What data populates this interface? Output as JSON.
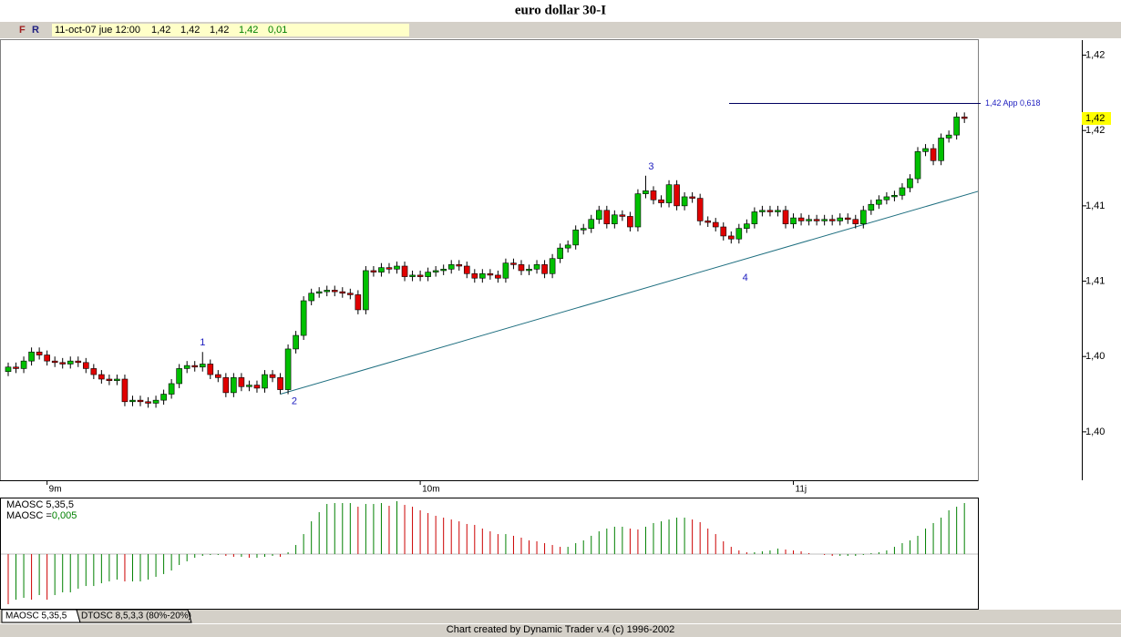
{
  "window": {
    "title": "euro dollar 30-I",
    "header": {
      "buttons": [
        "F",
        "R"
      ],
      "date": "11-oct-07 jue 12:00",
      "values": [
        "1,42",
        "1,42",
        "1,42",
        "1,42",
        "0,01"
      ]
    },
    "tabs": [
      "MAOSC 5,35,5",
      "DTOSC 8,5,3,3 (80%-20%)"
    ],
    "footer": "Chart created by Dynamic Trader v.4  (c)  1996-2002"
  },
  "chart_data": {
    "type": "candlestick",
    "ylim": [
      1.396,
      1.426
    ],
    "yticks": [
      {
        "value": 1.425,
        "label": "1,42"
      },
      {
        "value": 1.42,
        "label": "1,42"
      },
      {
        "value": 1.415,
        "label": "1,41"
      },
      {
        "value": 1.41,
        "label": "1,41"
      },
      {
        "value": 1.405,
        "label": "1,40"
      },
      {
        "value": 1.4,
        "label": "1,40"
      }
    ],
    "categories": [
      null,
      null,
      null,
      null,
      null,
      "9m",
      null,
      null,
      null,
      null,
      null,
      null,
      null,
      null,
      null,
      null,
      null,
      null,
      null,
      null,
      null,
      null,
      null,
      null,
      null,
      null,
      null,
      null,
      null,
      null,
      null,
      null,
      null,
      null,
      null,
      null,
      null,
      null,
      null,
      null,
      null,
      null,
      null,
      null,
      null,
      null,
      null,
      null,
      null,
      null,
      null,
      null,
      null,
      "10m",
      null,
      null,
      null,
      null,
      null,
      null,
      null,
      null,
      null,
      null,
      null,
      null,
      null,
      null,
      null,
      null,
      null,
      null,
      null,
      null,
      null,
      null,
      null,
      null,
      null,
      null,
      null,
      null,
      null,
      null,
      null,
      null,
      null,
      null,
      null,
      null,
      null,
      null,
      null,
      null,
      null,
      null,
      null,
      null,
      null,
      null,
      null,
      "11j",
      null,
      null,
      null,
      null,
      null,
      null,
      null,
      null,
      null,
      null,
      null,
      null,
      null,
      null,
      null,
      null,
      null,
      null,
      null,
      null,
      null,
      null
    ],
    "open": [
      1.404,
      1.4043,
      1.4042,
      1.4047,
      1.4053,
      1.4051,
      1.4047,
      1.4046,
      1.4045,
      1.4047,
      1.4046,
      1.4042,
      1.4038,
      1.4035,
      1.4034,
      1.4035,
      1.402,
      1.4021,
      1.402,
      1.4019,
      1.4021,
      1.4025,
      1.4032,
      1.4042,
      1.4044,
      1.4043,
      1.4045,
      1.4038,
      1.4036,
      1.4026,
      1.4036,
      1.403,
      1.4031,
      1.4029,
      1.4038,
      1.4036,
      1.4028,
      1.4055,
      1.4064,
      1.4087,
      1.4092,
      1.4093,
      1.4094,
      1.4093,
      1.4092,
      1.4091,
      1.4081,
      1.4107,
      1.4106,
      1.4109,
      1.4108,
      1.411,
      1.4103,
      1.4104,
      1.4103,
      1.4106,
      1.4107,
      1.4108,
      1.4111,
      1.411,
      1.4105,
      1.4102,
      1.4105,
      1.4104,
      1.4102,
      1.4112,
      1.4111,
      1.4107,
      1.4108,
      1.4111,
      1.4105,
      1.4115,
      1.4122,
      1.4124,
      1.4134,
      1.4135,
      1.4141,
      1.4147,
      1.4138,
      1.4144,
      1.4143,
      1.4136,
      1.4158,
      1.416,
      1.4154,
      1.4152,
      1.4164,
      1.415,
      1.4156,
      1.4155,
      1.414,
      1.4139,
      1.4136,
      1.413,
      1.4128,
      1.4135,
      1.4138,
      1.4146,
      1.4147,
      1.4146,
      1.4147,
      1.4138,
      1.4142,
      1.414,
      1.4141,
      1.414,
      1.4141,
      1.414,
      1.4142,
      1.4141,
      1.4138,
      1.4147,
      1.4151,
      1.4154,
      1.4156,
      1.4157,
      1.4162,
      1.4168,
      1.4186,
      1.4188,
      1.418,
      1.4195,
      1.4197,
      1.4209
    ],
    "high": [
      1.4046,
      1.4046,
      1.405,
      1.4056,
      1.4056,
      1.4054,
      1.405,
      1.4049,
      1.405,
      1.405,
      1.4049,
      1.4045,
      1.4041,
      1.4038,
      1.4038,
      1.4038,
      1.4024,
      1.4024,
      1.4023,
      1.4024,
      1.4028,
      1.4035,
      1.4045,
      1.4047,
      1.4047,
      1.4053,
      1.4048,
      1.4041,
      1.4039,
      1.4039,
      1.4039,
      1.4034,
      1.4034,
      1.4041,
      1.4041,
      1.4039,
      1.4058,
      1.4067,
      1.409,
      1.4095,
      1.4096,
      1.4097,
      1.4097,
      1.4096,
      1.4095,
      1.4094,
      1.411,
      1.411,
      1.4112,
      1.4112,
      1.4113,
      1.4113,
      1.4107,
      1.4107,
      1.4109,
      1.411,
      1.4111,
      1.4114,
      1.4114,
      1.4113,
      1.4108,
      1.4108,
      1.4108,
      1.4107,
      1.4115,
      1.4115,
      1.4114,
      1.4111,
      1.4114,
      1.4114,
      1.4118,
      1.4125,
      1.4127,
      1.4137,
      1.4138,
      1.4144,
      1.415,
      1.415,
      1.4147,
      1.4147,
      1.4146,
      1.4161,
      1.417,
      1.4163,
      1.4157,
      1.4167,
      1.4167,
      1.4159,
      1.4159,
      1.4158,
      1.4143,
      1.4142,
      1.4139,
      1.4133,
      1.4138,
      1.4141,
      1.4149,
      1.415,
      1.415,
      1.415,
      1.415,
      1.4145,
      1.4145,
      1.4144,
      1.4144,
      1.4144,
      1.4144,
      1.4145,
      1.4145,
      1.4144,
      1.415,
      1.4154,
      1.4157,
      1.4159,
      1.416,
      1.4165,
      1.4171,
      1.4189,
      1.4191,
      1.4191,
      1.4198,
      1.42,
      1.4212,
      1.4212
    ],
    "low": [
      1.4037,
      1.4039,
      1.4039,
      1.4044,
      1.4048,
      1.4044,
      1.4043,
      1.4042,
      1.4042,
      1.4043,
      1.4039,
      1.4035,
      1.4032,
      1.4031,
      1.4031,
      1.4017,
      1.4017,
      1.4017,
      1.4016,
      1.4016,
      1.4018,
      1.4022,
      1.4029,
      1.4039,
      1.404,
      1.404,
      1.4035,
      1.4033,
      1.4023,
      1.4023,
      1.4027,
      1.4027,
      1.4026,
      1.4026,
      1.4033,
      1.4025,
      1.4025,
      1.4052,
      1.4061,
      1.4084,
      1.4089,
      1.409,
      1.409,
      1.4089,
      1.4088,
      1.4078,
      1.4078,
      1.4103,
      1.4103,
      1.4105,
      1.4105,
      1.41,
      1.41,
      1.41,
      1.41,
      1.4103,
      1.4104,
      1.4105,
      1.4107,
      1.4102,
      1.4099,
      1.4099,
      1.4101,
      1.4099,
      1.4099,
      1.4108,
      1.4104,
      1.4104,
      1.4105,
      1.4102,
      1.4102,
      1.4112,
      1.4119,
      1.4121,
      1.4131,
      1.4132,
      1.4138,
      1.4135,
      1.4135,
      1.414,
      1.4133,
      1.4133,
      1.4155,
      1.4151,
      1.4149,
      1.4149,
      1.4147,
      1.4147,
      1.4152,
      1.4137,
      1.4136,
      1.4133,
      1.4127,
      1.4125,
      1.4125,
      1.4132,
      1.4135,
      1.4143,
      1.4143,
      1.4143,
      1.4135,
      1.4135,
      1.4137,
      1.4137,
      1.4137,
      1.4137,
      1.4137,
      1.4137,
      1.4138,
      1.4135,
      1.4135,
      1.4144,
      1.4148,
      1.4151,
      1.4153,
      1.4154,
      1.4159,
      1.4165,
      1.4183,
      1.4177,
      1.4177,
      1.4192,
      1.4194,
      1.4205
    ],
    "close": [
      1.4043,
      1.4042,
      1.4047,
      1.4053,
      1.4051,
      1.4047,
      1.4046,
      1.4045,
      1.4047,
      1.4046,
      1.4042,
      1.4038,
      1.4035,
      1.4034,
      1.4035,
      1.402,
      1.4021,
      1.402,
      1.4019,
      1.4021,
      1.4025,
      1.4032,
      1.4042,
      1.4044,
      1.4043,
      1.4045,
      1.4038,
      1.4036,
      1.4026,
      1.4036,
      1.403,
      1.4031,
      1.4029,
      1.4038,
      1.4036,
      1.4028,
      1.4055,
      1.4064,
      1.4087,
      1.4092,
      1.4093,
      1.4094,
      1.4093,
      1.4092,
      1.4091,
      1.4081,
      1.4107,
      1.4106,
      1.4109,
      1.4108,
      1.411,
      1.4103,
      1.4104,
      1.4103,
      1.4106,
      1.4107,
      1.4108,
      1.4111,
      1.411,
      1.4105,
      1.4102,
      1.4105,
      1.4104,
      1.4102,
      1.4112,
      1.4111,
      1.4107,
      1.4108,
      1.4111,
      1.4105,
      1.4115,
      1.4122,
      1.4124,
      1.4134,
      1.4135,
      1.4141,
      1.4147,
      1.4138,
      1.4144,
      1.4143,
      1.4136,
      1.4158,
      1.416,
      1.4154,
      1.4152,
      1.4164,
      1.415,
      1.4156,
      1.4155,
      1.414,
      1.4139,
      1.4136,
      1.413,
      1.4128,
      1.4135,
      1.4138,
      1.4146,
      1.4147,
      1.4146,
      1.4147,
      1.4138,
      1.4142,
      1.414,
      1.4141,
      1.414,
      1.4141,
      1.414,
      1.4142,
      1.4141,
      1.4138,
      1.4147,
      1.4151,
      1.4154,
      1.4156,
      1.4157,
      1.4162,
      1.4168,
      1.4186,
      1.4188,
      1.418,
      1.4195,
      1.4197,
      1.4209,
      1.4208
    ],
    "up_color": "#00c000",
    "down_color": "#e00000",
    "last_price_label": "1,42",
    "level_line": {
      "value": 1.4218,
      "label": "1,42 App 0,618",
      "color": "#000060"
    },
    "trendline": {
      "from": [
        35,
        1.4025
      ],
      "to": [
        125,
        1.416
      ],
      "color": "#1f6f80"
    },
    "annotations": [
      {
        "text": "1",
        "x": 25,
        "y": 1.4059
      },
      {
        "text": "2",
        "x": 36.8,
        "y": 1.402
      },
      {
        "text": "3",
        "x": 82.7,
        "y": 1.4176
      },
      {
        "text": "4",
        "x": 94.8,
        "y": 1.4102
      }
    ],
    "oscillator": {
      "name": "MAOSC 5,35,5",
      "value_prefix": "MAOSC =",
      "value_label": "0,005",
      "up_color": "#008000",
      "down_color": "#cc0000",
      "values": [
        -0.00491,
        -0.00447,
        -0.00429,
        -0.00447,
        -0.00402,
        -0.00447,
        -0.00402,
        -0.00375,
        -0.00375,
        -0.00339,
        -0.00313,
        -0.00313,
        -0.00286,
        -0.00268,
        -0.0025,
        -0.00268,
        -0.00268,
        -0.00268,
        -0.0025,
        -0.00223,
        -0.00196,
        -0.00161,
        -0.00107,
        -0.00071,
        -0.00036,
        -0.00018,
        -9e-05,
        -9e-05,
        -0.00018,
        -0.00027,
        -0.00027,
        -0.00036,
        -0.00036,
        -0.00027,
        -0.00018,
        -0.00027,
        0.00018,
        0.00089,
        0.00196,
        0.00321,
        0.00411,
        0.00491,
        0.005,
        0.005,
        0.005,
        0.00464,
        0.00491,
        0.00491,
        0.005,
        0.00473,
        0.00518,
        0.00482,
        0.00464,
        0.00429,
        0.00402,
        0.00375,
        0.00357,
        0.00339,
        0.00321,
        0.00295,
        0.00286,
        0.0025,
        0.00223,
        0.00196,
        0.00196,
        0.00179,
        0.00161,
        0.00134,
        0.00125,
        0.00107,
        0.00089,
        0.00071,
        0.00071,
        0.00107,
        0.00134,
        0.00179,
        0.00223,
        0.0025,
        0.00268,
        0.00268,
        0.0025,
        0.00241,
        0.00268,
        0.00304,
        0.00321,
        0.00339,
        0.00357,
        0.00357,
        0.00339,
        0.00313,
        0.0025,
        0.00196,
        0.00125,
        0.00071,
        0.00036,
        0.00018,
        0.00018,
        0.00027,
        0.00036,
        0.00054,
        0.00045,
        0.00036,
        0.00027,
        9e-05,
        0,
        -9e-05,
        -0.00018,
        -0.00018,
        -0.00018,
        -0.00018,
        -9e-05,
        9e-05,
        0.00018,
        0.00036,
        0.00071,
        0.00107,
        0.00134,
        0.00179,
        0.0025,
        0.00304,
        0.00357,
        0.00429,
        0.00464,
        0.005
      ]
    }
  }
}
